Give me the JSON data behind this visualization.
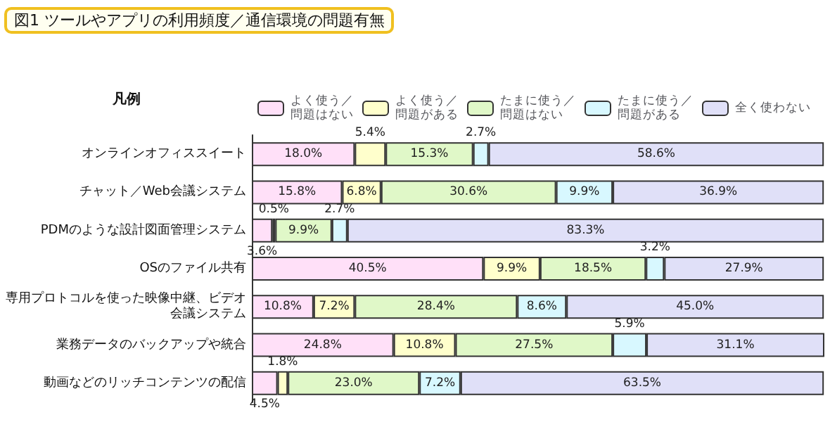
{
  "chart_data": {
    "type": "bar",
    "orientation": "horizontal",
    "stacked": true,
    "title": "図1 ツールやアプリの利用頻度／通信環境の問題有無",
    "legend_title": "凡例",
    "legend": "top",
    "tick_labels": "y",
    "xlim": [
      0,
      100.1
    ],
    "categories": [
      "オンラインオフィススイート",
      "チャット／Web会議システム",
      "PDMのような設計図面管理システム",
      "OSのファイル共有",
      "専用プロトコルを使った映像中継、ビデオ会議システム",
      "業務データのバックアップや統合",
      "動画などのリッチコンテンツの配信"
    ],
    "series": [
      {
        "name": "よく使う／問題はない",
        "color": "#ffe0f8",
        "values": [
          18.0,
          15.8,
          3.6,
          40.5,
          10.8,
          24.8,
          4.5
        ],
        "value_labels": [
          "18.0%",
          "15.8%",
          "3.6%",
          "40.5%",
          "10.8%",
          "24.8%",
          "4.5%"
        ]
      },
      {
        "name": "よく使う／問題がある",
        "color": "#ffffcc",
        "values": [
          5.4,
          6.8,
          0.5,
          9.9,
          7.2,
          10.8,
          1.8
        ],
        "value_labels": [
          "5.4%",
          "6.8%",
          "0.5%",
          "9.9%",
          "7.2%",
          "10.8%",
          "1.8%"
        ]
      },
      {
        "name": "たまに使う／問題はない",
        "color": "#e0f8c8",
        "values": [
          15.3,
          30.6,
          9.9,
          18.5,
          28.4,
          27.5,
          23.0
        ],
        "value_labels": [
          "15.3%",
          "30.6%",
          "9.9%",
          "18.5%",
          "28.4%",
          "27.5%",
          "23.0%"
        ]
      },
      {
        "name": "たまに使う／問題がある",
        "color": "#d8f8ff",
        "values": [
          2.7,
          9.9,
          2.7,
          3.2,
          8.6,
          5.9,
          7.2
        ],
        "value_labels": [
          "2.7%",
          "9.9%",
          "2.7%",
          "3.2%",
          "8.6%",
          "5.9%",
          "7.2%"
        ]
      },
      {
        "name": "全く使わない",
        "color": "#e0e0f8",
        "values": [
          58.6,
          36.9,
          83.3,
          27.9,
          45.0,
          31.1,
          63.5
        ],
        "value_labels": [
          "58.6%",
          "36.9%",
          "83.3%",
          "27.9%",
          "45.0%",
          "31.1%",
          "63.5%"
        ]
      }
    ]
  }
}
